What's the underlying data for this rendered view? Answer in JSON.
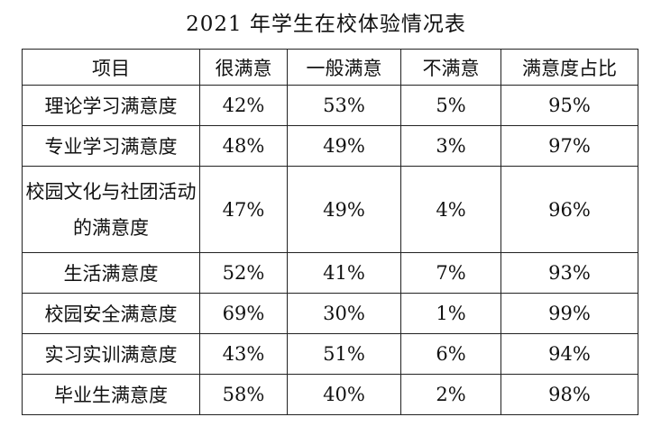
{
  "title": "2021 年学生在校体验情况表",
  "chart_data": {
    "type": "table",
    "title": "2021 年学生在校体验情况表",
    "columns": [
      "项目",
      "很满意",
      "一般满意",
      "不满意",
      "满意度占比"
    ],
    "rows": [
      {
        "item": "理论学习满意度",
        "very_satisfied": "42%",
        "fairly_satisfied": "53%",
        "dissatisfied": "5%",
        "satisfaction_ratio": "95%"
      },
      {
        "item": "专业学习满意度",
        "very_satisfied": "48%",
        "fairly_satisfied": "49%",
        "dissatisfied": "3%",
        "satisfaction_ratio": "97%"
      },
      {
        "item": "校园文化与社团活动的满意度",
        "very_satisfied": "47%",
        "fairly_satisfied": "49%",
        "dissatisfied": "4%",
        "satisfaction_ratio": "96%"
      },
      {
        "item": "生活满意度",
        "very_satisfied": "52%",
        "fairly_satisfied": "41%",
        "dissatisfied": "7%",
        "satisfaction_ratio": "93%"
      },
      {
        "item": "校园安全满意度",
        "very_satisfied": "69%",
        "fairly_satisfied": "30%",
        "dissatisfied": "1%",
        "satisfaction_ratio": "99%"
      },
      {
        "item": "实习实训满意度",
        "very_satisfied": "43%",
        "fairly_satisfied": "51%",
        "dissatisfied": "6%",
        "satisfaction_ratio": "94%"
      },
      {
        "item": "毕业生满意度",
        "very_satisfied": "58%",
        "fairly_satisfied": "40%",
        "dissatisfied": "2%",
        "satisfaction_ratio": "98%"
      }
    ]
  }
}
